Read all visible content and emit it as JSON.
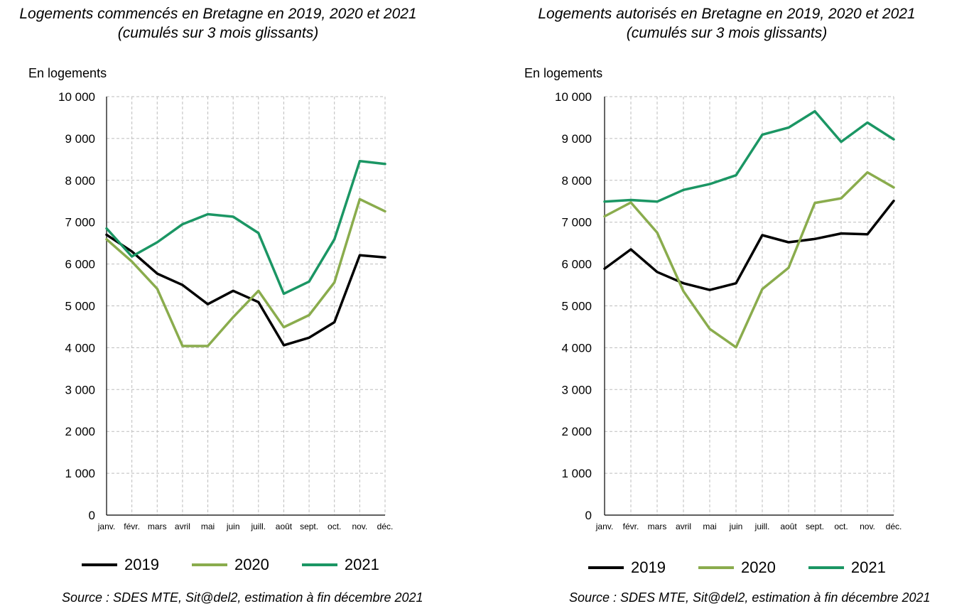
{
  "chart_data": [
    {
      "type": "line",
      "title": "Logements commencés en Bretagne en 2019, 2020 et 2021",
      "subtitle": "(cumulés sur 3 mois glissants)",
      "ylabel": "En logements",
      "xlabel": "",
      "categories": [
        "janv.",
        "févr.",
        "mars",
        "avril",
        "mai",
        "juin",
        "juill.",
        "août",
        "sept.",
        "oct.",
        "nov.",
        "déc."
      ],
      "yticks": [
        "0",
        "1 000",
        "2 000",
        "3 000",
        "4 000",
        "5 000",
        "6 000",
        "7 000",
        "8 000",
        "9 000",
        "10 000"
      ],
      "ylim": [
        0,
        10000
      ],
      "grid": true,
      "legend_position": "bottom",
      "series": [
        {
          "name": "2019",
          "color": "#000000",
          "values": [
            6700,
            6300,
            5770,
            5500,
            5040,
            5360,
            5090,
            4060,
            4240,
            4610,
            6210,
            6160
          ]
        },
        {
          "name": "2020",
          "color": "#8aac4d",
          "values": [
            6590,
            6060,
            5410,
            4040,
            4040,
            4730,
            5360,
            4490,
            4780,
            5560,
            7550,
            7260
          ]
        },
        {
          "name": "2021",
          "color": "#1b9664",
          "values": [
            6850,
            6180,
            6520,
            6950,
            7190,
            7130,
            6740,
            5290,
            5580,
            6590,
            8460,
            8390
          ]
        }
      ],
      "source": "Source : SDES MTE, Sit@del2, estimation à fin décembre 2021"
    },
    {
      "type": "line",
      "title": "Logements autorisés en Bretagne en 2019, 2020 et 2021",
      "subtitle": "(cumulés sur 3 mois glissants)",
      "ylabel": "En logements",
      "xlabel": "",
      "categories": [
        "janv.",
        "févr.",
        "mars",
        "avril",
        "mai",
        "juin",
        "juill.",
        "août",
        "sept.",
        "oct.",
        "nov.",
        "déc."
      ],
      "yticks": [
        "0",
        "1 000",
        "2 000",
        "3 000",
        "4 000",
        "5 000",
        "6 000",
        "7 000",
        "8 000",
        "9 000",
        "10 000"
      ],
      "ylim": [
        0,
        10000
      ],
      "grid": true,
      "legend_position": "bottom",
      "series": [
        {
          "name": "2019",
          "color": "#000000",
          "values": [
            5890,
            6350,
            5810,
            5540,
            5380,
            5540,
            6690,
            6520,
            6600,
            6730,
            6710,
            7510
          ]
        },
        {
          "name": "2020",
          "color": "#8aac4d",
          "values": [
            7140,
            7470,
            6750,
            5350,
            4450,
            4010,
            5400,
            5910,
            7460,
            7570,
            8190,
            7830
          ]
        },
        {
          "name": "2021",
          "color": "#1b9664",
          "values": [
            7490,
            7530,
            7490,
            7770,
            7910,
            8120,
            9090,
            9260,
            9650,
            8920,
            9380,
            8980
          ]
        }
      ],
      "source": "Source : SDES MTE, Sit@del2, estimation à fin décembre 2021"
    }
  ]
}
